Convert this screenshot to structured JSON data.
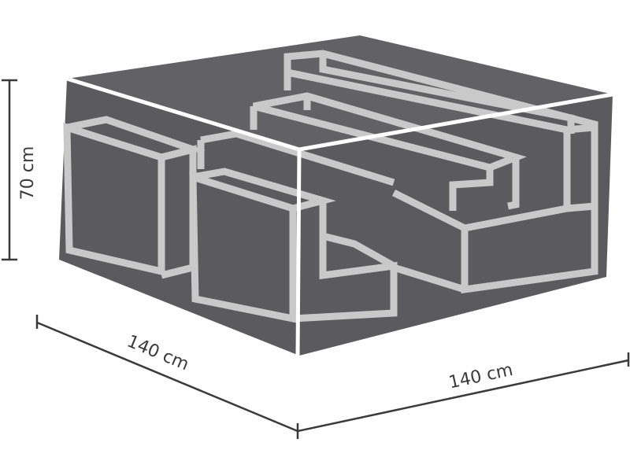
{
  "dimensions": {
    "height_label": "70 cm",
    "depth_label": "140 cm",
    "width_label": "140 cm"
  },
  "colors": {
    "cover_fill": "#5b5b5d",
    "cover_top_fill": "#626264",
    "cover_edge": "#ffffff",
    "furniture_outline": "#c9c9c9",
    "dimension_line": "#3a3a3a"
  }
}
